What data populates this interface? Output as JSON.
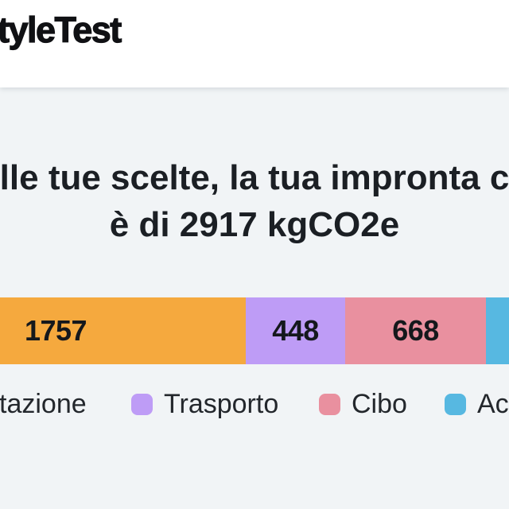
{
  "header": {
    "logo_text": "tyleTest"
  },
  "result": {
    "heading_line1": "alle tue scelte, la tua impronta ca",
    "heading_line2": "è di 2917 kgCO2e",
    "total": 2917,
    "unit": "kgCO2e"
  },
  "chart_data": {
    "type": "bar",
    "orientation": "horizontal",
    "stacked": true,
    "title": "è di 2917 kgCO2e",
    "total": 2917,
    "unit": "kgCO2e",
    "segments": [
      {
        "label": "tazione",
        "value": 1757,
        "color": "#F5A93E"
      },
      {
        "label": "Trasporto",
        "value": 448,
        "color": "#BE9CF6"
      },
      {
        "label": "Cibo",
        "value": 668,
        "color": "#E9909F"
      },
      {
        "label": "Ac",
        "value": null,
        "color": "#57B8E1"
      }
    ],
    "legend_position": "bottom"
  },
  "legend": {
    "items": [
      {
        "label": "tazione",
        "color": "#F5A93E"
      },
      {
        "label": "Trasporto",
        "color": "#BE9CF6"
      },
      {
        "label": "Cibo",
        "color": "#E9909F"
      },
      {
        "label": "Ac",
        "color": "#57B8E1"
      }
    ]
  }
}
